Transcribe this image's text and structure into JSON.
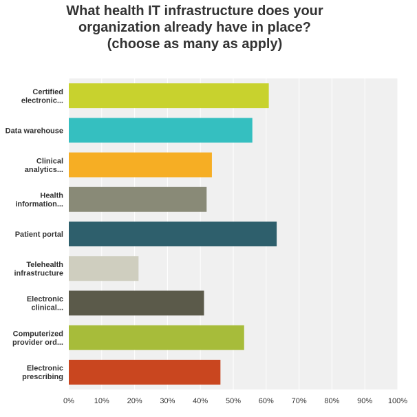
{
  "chart_data": {
    "type": "bar",
    "orientation": "horizontal",
    "title_lines": [
      "What health IT infrastructure does your",
      "organization already have in place?",
      "(choose as many as apply)"
    ],
    "categories": [
      [
        "Certified",
        "electronic..."
      ],
      [
        "Data warehouse"
      ],
      [
        "Clinical",
        "analytics..."
      ],
      [
        "Health",
        "information..."
      ],
      [
        "Patient portal"
      ],
      [
        "Telehealth",
        "infrastructure"
      ],
      [
        "Electronic",
        "clinical..."
      ],
      [
        "Computerized",
        "provider ord..."
      ],
      [
        "Electronic",
        "prescribing"
      ]
    ],
    "values": [
      60.8,
      55.8,
      43.5,
      41.9,
      63.2,
      21.2,
      41.1,
      53.3,
      46.1
    ],
    "colors": [
      "#c8d22e",
      "#35bfc0",
      "#f6ae24",
      "#898a77",
      "#2e5f6c",
      "#cfcebf",
      "#5b5a4a",
      "#a7bc3a",
      "#c9461f"
    ],
    "xlim": [
      0,
      100
    ],
    "ticks": [
      0,
      10,
      20,
      30,
      40,
      50,
      60,
      70,
      80,
      90,
      100
    ],
    "tick_labels": [
      "0%",
      "10%",
      "20%",
      "30%",
      "40%",
      "50%",
      "60%",
      "70%",
      "80%",
      "90%",
      "100%"
    ],
    "grid": true,
    "plot_background": "#f0f0f0",
    "grid_color": "#ffffff"
  }
}
